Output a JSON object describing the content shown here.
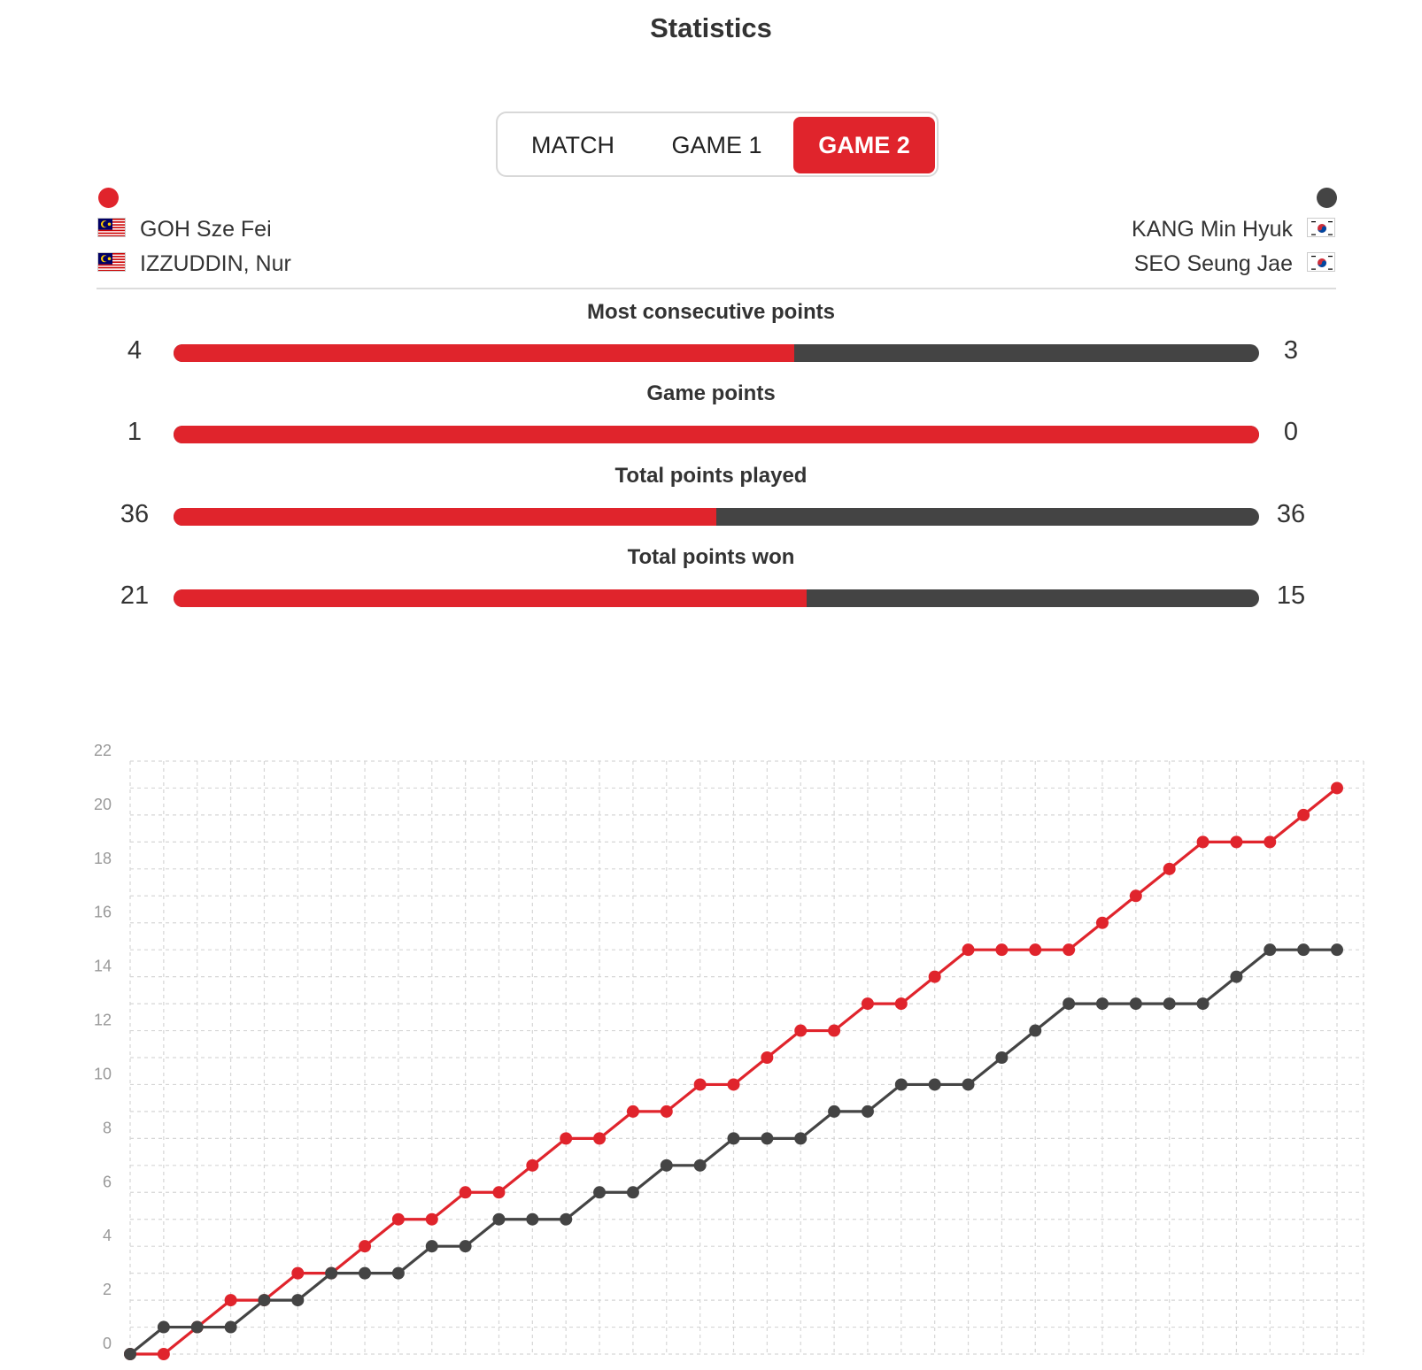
{
  "title": "Statistics",
  "tabs": [
    {
      "label": "MATCH",
      "active": false
    },
    {
      "label": "GAME 1",
      "active": false
    },
    {
      "label": "GAME 2",
      "active": true
    }
  ],
  "team_left": {
    "color": "#e0242c",
    "flag": "malaysia-flag",
    "players": [
      "GOH Sze Fei",
      "IZZUDDIN, Nur"
    ]
  },
  "team_right": {
    "color": "#444444",
    "flag": "south-korea-flag",
    "players": [
      "KANG Min Hyuk",
      "SEO Seung Jae"
    ]
  },
  "stats": [
    {
      "label": "Most consecutive points",
      "left": "4",
      "right": "3",
      "left_share": 0.5714
    },
    {
      "label": "Game points",
      "left": "1",
      "right": "0",
      "left_share": 1.0
    },
    {
      "label": "Total points played",
      "left": "36",
      "right": "36",
      "left_share": 0.5
    },
    {
      "label": "Total points won",
      "left": "21",
      "right": "15",
      "left_share": 0.5833
    }
  ],
  "chart_data": {
    "type": "line",
    "title": "",
    "xlabel": "",
    "ylabel": "",
    "ylim": [
      0,
      22
    ],
    "yticks": [
      0,
      2,
      4,
      6,
      8,
      10,
      12,
      14,
      16,
      18,
      20,
      22
    ],
    "x": [
      0,
      1,
      2,
      3,
      4,
      5,
      6,
      7,
      8,
      9,
      10,
      11,
      12,
      13,
      14,
      15,
      16,
      17,
      18,
      19,
      20,
      21,
      22,
      23,
      24,
      25,
      26,
      27,
      28,
      29,
      30,
      31,
      32,
      33,
      34,
      35,
      36
    ],
    "grid": true,
    "series": [
      {
        "color": "#e0242c",
        "values": [
          0,
          0,
          1,
          2,
          2,
          3,
          3,
          4,
          5,
          5,
          6,
          6,
          7,
          8,
          8,
          9,
          9,
          10,
          10,
          11,
          12,
          12,
          13,
          13,
          14,
          15,
          15,
          15,
          15,
          16,
          17,
          18,
          19,
          19,
          19,
          20,
          21
        ]
      },
      {
        "color": "#444444",
        "values": [
          0,
          1,
          1,
          1,
          2,
          2,
          3,
          3,
          3,
          4,
          4,
          5,
          5,
          5,
          6,
          6,
          7,
          7,
          8,
          8,
          8,
          9,
          9,
          10,
          10,
          10,
          11,
          12,
          13,
          13,
          13,
          13,
          13,
          14,
          15,
          15,
          15
        ]
      }
    ]
  }
}
